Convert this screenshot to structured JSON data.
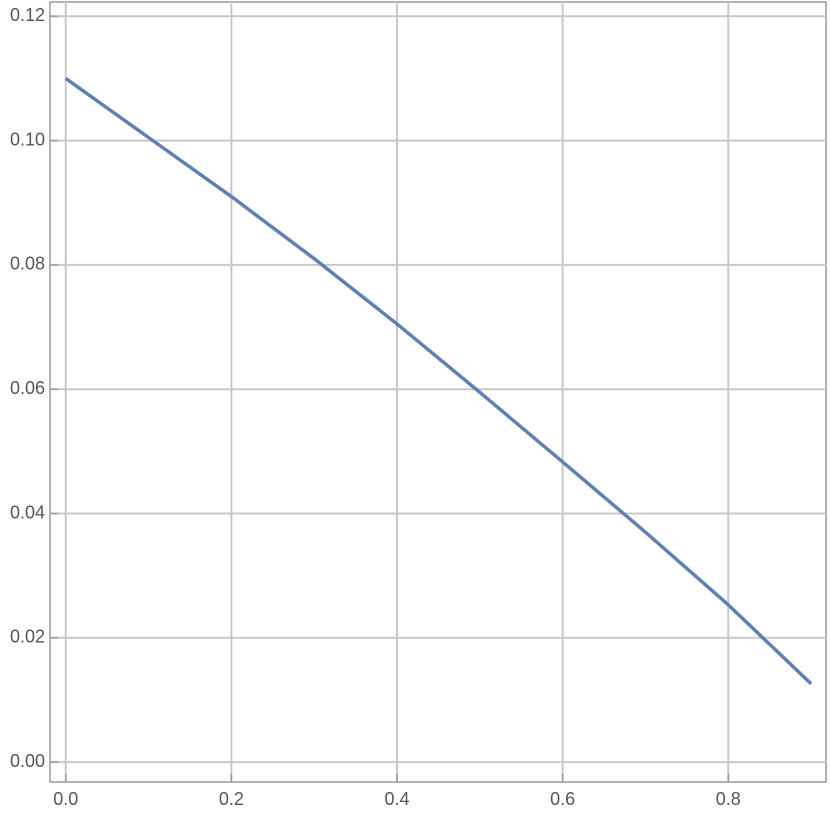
{
  "chart_data": {
    "type": "line",
    "x": [
      0,
      0.1,
      0.2,
      0.3,
      0.4,
      0.5,
      0.6,
      0.7,
      0.8,
      0.9
    ],
    "series": [
      {
        "color": "#5e81b5",
        "values": [
          0.11,
          0.1005,
          0.091,
          0.081,
          0.0705,
          0.0595,
          0.0483,
          0.037,
          0.0253,
          0.0126
        ]
      }
    ],
    "xlim": [
      -0.019,
      0.918
    ],
    "ylim": [
      -0.0032,
      0.1223
    ],
    "xticks": [
      {
        "value": 0,
        "label": "0.0"
      },
      0.2,
      0.4,
      0.6,
      0.8
    ],
    "yticks": [
      {
        "value": 0,
        "label": "0.00"
      },
      0.02,
      0.04,
      0.06,
      0.08,
      {
        "value": 0.1,
        "label": "0.10"
      },
      {
        "value": 0.12,
        "label": "0.12"
      }
    ],
    "grid": true
  }
}
